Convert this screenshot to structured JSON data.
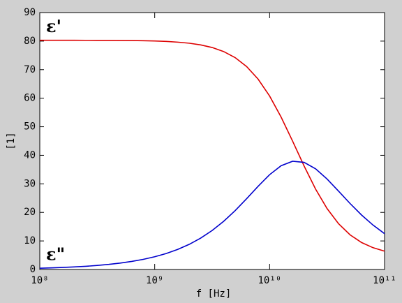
{
  "chart_data": {
    "type": "line",
    "xscale": "log",
    "xlabel": "f [Hz]",
    "ylabel": "[1]",
    "x": [
      100000000.0,
      125900000.0,
      158500000.0,
      199500000.0,
      251200000.0,
      316200000.0,
      398100000.0,
      501200000.0,
      631000000.0,
      794300000.0,
      1000000000.0,
      1259000000.0,
      1585000000.0,
      1995000000.0,
      2512000000.0,
      3162000000.0,
      3981000000.0,
      5012000000.0,
      6310000000.0,
      7943000000.0,
      10000000000.0,
      12590000000.0,
      15850000000.0,
      19950000000.0,
      25120000000.0,
      31620000000.0,
      39810000000.0,
      50120000000.0,
      63100000000.0,
      79430000000.0,
      100000000000.0
    ],
    "series": [
      {
        "name": "ε'",
        "color": "#dd0000",
        "values": [
          80.3,
          80.3,
          80.29,
          80.29,
          80.28,
          80.27,
          80.26,
          80.23,
          80.2,
          80.13,
          80.04,
          79.89,
          79.64,
          79.27,
          78.68,
          77.76,
          76.35,
          74.22,
          71.09,
          66.67,
          60.75,
          53.37,
          44.95,
          36.26,
          28.16,
          21.33,
          16.02,
          12.14,
          9.44,
          7.63,
          6.43
        ]
      },
      {
        "name": "ε\"",
        "color": "#0000cc",
        "values": [
          0.45,
          0.56,
          0.71,
          0.89,
          1.12,
          1.41,
          1.78,
          2.24,
          2.82,
          3.55,
          4.46,
          5.6,
          7.03,
          8.8,
          10.99,
          13.67,
          16.87,
          20.62,
          24.8,
          29.15,
          33.22,
          36.35,
          37.91,
          37.52,
          35.27,
          31.69,
          27.44,
          23.11,
          19.08,
          15.55,
          12.55
        ]
      }
    ],
    "xlim": [
      100000000.0,
      100000000000.0
    ],
    "xticks": [
      {
        "value": 100000000.0,
        "label": "10⁸"
      },
      {
        "value": 1000000000.0,
        "label": "10⁹"
      },
      {
        "value": 10000000000.0,
        "label": "10¹⁰"
      },
      {
        "value": 100000000000.0,
        "label": "10¹¹"
      }
    ],
    "ylim": [
      0,
      90
    ],
    "yticks": [
      0,
      10,
      20,
      30,
      40,
      50,
      60,
      70,
      80,
      90
    ]
  }
}
